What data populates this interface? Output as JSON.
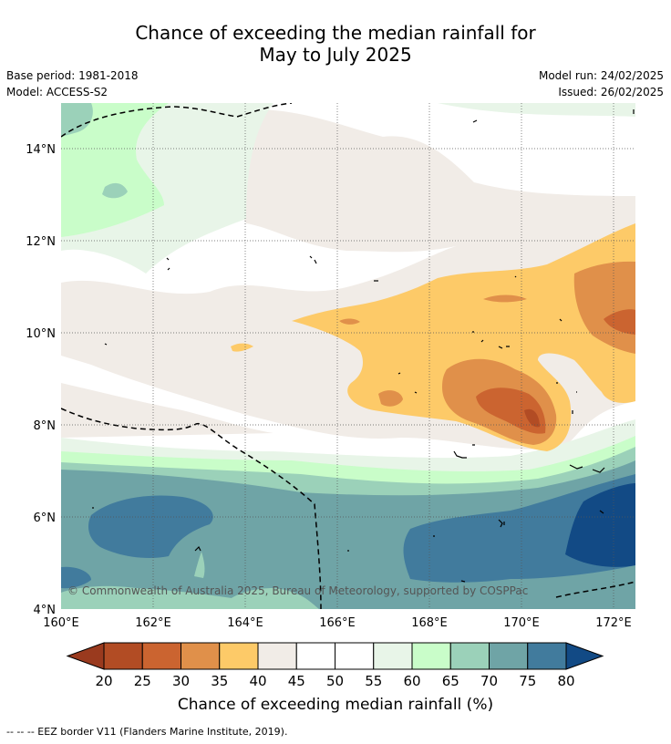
{
  "title": {
    "line1": "Chance of exceeding the median rainfall for",
    "line2": "May to July 2025"
  },
  "meta": {
    "base_period": "Base period: 1981-2018",
    "model": "Model: ACCESS-S2",
    "model_run": "Model run: 24/02/2025",
    "issued": "Issued: 26/02/2025"
  },
  "map": {
    "copyright": "© Commonwealth of Australia 2025, Bureau of Meteorology, supported by COSPPac",
    "lat_labels": [
      "14°N",
      "12°N",
      "10°N",
      "8°N",
      "6°N",
      "4°N"
    ],
    "lon_labels": [
      "160°E",
      "162°E",
      "164°E",
      "166°E",
      "168°E",
      "170°E",
      "172°E"
    ],
    "lon_range": [
      160,
      172.5
    ],
    "lat_range": [
      4,
      15
    ]
  },
  "colorbar": {
    "label": "Chance of exceeding median rainfall (%)",
    "ticks": [
      "20",
      "25",
      "30",
      "35",
      "40",
      "45",
      "50",
      "55",
      "60",
      "65",
      "70",
      "75",
      "80"
    ],
    "colors": [
      "#9a3a1e",
      "#b24c24",
      "#cb6430",
      "#e0904a",
      "#fdca68",
      "#f1ece7",
      "#ffffff",
      "#ffffff",
      "#e8f5e8",
      "#c9fdc9",
      "#9bd1b9",
      "#6fa4a6",
      "#417b9d",
      "#124a85"
    ]
  },
  "footer": "-- -- -- EEZ border V11 (Flanders Marine Institute, 2019)."
}
